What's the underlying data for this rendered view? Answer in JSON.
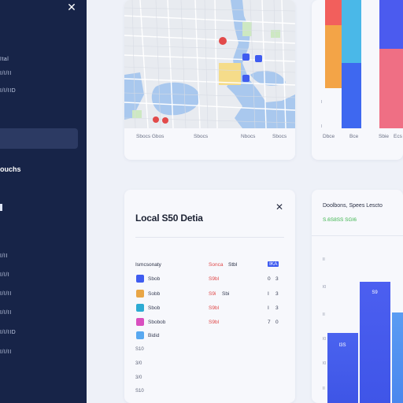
{
  "sidebar": {
    "items": [
      "Ital",
      "I/I/II",
      "I/I/IID"
    ],
    "section_label": "ouchs",
    "lower_items": [
      "I/II",
      "I/I/I",
      "I/I/II",
      "I/I/II",
      "I/I/IID",
      "I/I/II"
    ]
  },
  "map_card": {
    "footer": [
      "Sbocs Gbos",
      "Sbocs",
      "Nbocs",
      "Sbocs"
    ],
    "pin_labels": [
      "4",
      "4"
    ]
  },
  "bar_card_top": {
    "labels": [
      "Dbce",
      "Bce",
      "Sbie",
      "Ecs"
    ],
    "ticks": [
      "I",
      "I"
    ],
    "colors": [
      "#f25f5c",
      "#f3a447",
      "#4ab8e8",
      "#3e68f0",
      "#4b5bef",
      "#ef6f84"
    ]
  },
  "table_card": {
    "title": "Local S50 Detia",
    "headers": {
      "col1": "Ismcsonaty",
      "col2": "Sonca",
      "col2b": "Stbl",
      "col3": "IKA"
    },
    "rows": [
      {
        "icon_color": "#3f5cf0",
        "name": "Sbob",
        "value": "S9bl",
        "value2": "",
        "a": "0",
        "b": "3"
      },
      {
        "icon_color": "#e9a646",
        "name": "Sobb",
        "value": "S9i",
        "value2": "Sbi",
        "a": "I",
        "b": "3"
      },
      {
        "icon_color": "#2dabd3",
        "name": "Sbob",
        "value": "S9bl",
        "value2": "",
        "a": "I",
        "b": "3"
      },
      {
        "icon_color": "#d94fbf",
        "name": "Sbobob",
        "value": "S9bl",
        "value2": "",
        "a": "7",
        "b": "0"
      },
      {
        "icon_color": "#58a8f0",
        "name": "Bidid",
        "value": "",
        "value2": "",
        "a": "",
        "b": ""
      }
    ],
    "extra_numbers": [
      "S10",
      "3/0",
      "3/0",
      "S10"
    ]
  },
  "chart_card": {
    "title": "Doolbons, Spees Lescto",
    "subtitle": "S.6S8SS SGI6",
    "ticks": [
      "II",
      "I0",
      "II",
      "I0",
      "I0",
      "II"
    ],
    "bar_labels": [
      "I3S",
      "S9",
      ""
    ]
  }
}
